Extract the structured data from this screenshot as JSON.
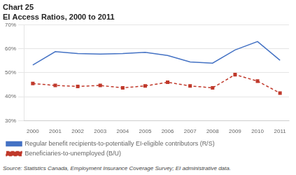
{
  "chart_data": {
    "type": "line",
    "title": "Chart 25",
    "subtitle": "EI Access Ratios, 2000 to 2011",
    "x": [
      2000,
      2001,
      2002,
      2003,
      2004,
      2005,
      2006,
      2007,
      2008,
      2009,
      2010,
      2011
    ],
    "series": [
      {
        "name": "Regular benefit recipients-to-potentially EI-eligible contributors (R/S)",
        "color": "#4472C4",
        "line_style": "solid",
        "marker": "none",
        "values": [
          53.2,
          58.8,
          58.0,
          57.8,
          58.0,
          58.5,
          57.2,
          54.5,
          54.0,
          59.5,
          63.0,
          55.2
        ]
      },
      {
        "name": "Beneficiaries-to-unemployed (B/U)",
        "color": "#C0392B",
        "line_style": "dashed",
        "marker": "square",
        "values": [
          45.5,
          44.7,
          44.3,
          44.7,
          43.7,
          44.5,
          46.0,
          44.5,
          43.7,
          49.2,
          46.5,
          41.5
        ]
      }
    ],
    "xlim": [
      1999.6,
      2011.4
    ],
    "xticks": [
      2000,
      2001,
      2002,
      2003,
      2004,
      2005,
      2006,
      2007,
      2008,
      2009,
      2010,
      2011
    ],
    "ylim": [
      30,
      70
    ],
    "yticks": [
      {
        "value": 30,
        "label": "30%"
      },
      {
        "value": 40,
        "label": "40%"
      },
      {
        "value": 50,
        "label": "50%"
      },
      {
        "value": 60,
        "label": "60%"
      },
      {
        "value": 70,
        "label": "70%"
      }
    ],
    "grid": true,
    "legend": "bottom",
    "annotations": [
      "Source: Statistics Canada, Employment Insurance Coverage Survey; EI administrative data."
    ]
  }
}
